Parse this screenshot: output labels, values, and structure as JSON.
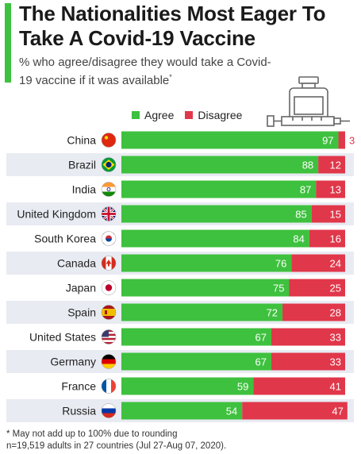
{
  "header": {
    "title": "The Nationalities Most Eager To Take A Covid-19 Vaccine",
    "subtitle": "% who agree/disagree they would take a Covid-19 vaccine if it was available",
    "subtitle_marker": "*"
  },
  "legend": {
    "agree_label": "Agree",
    "disagree_label": "Disagree"
  },
  "footnote": {
    "line1": "* May not add up to 100% due to rounding",
    "line2": "n=19,519 adults in 27 countries (Jul 27-Aug 07, 2020)."
  },
  "colors": {
    "agree": "#3ec13e",
    "disagree": "#e0374a",
    "stripe": "#e8ebf2",
    "accent": "#3ec13e"
  },
  "chart_data": {
    "type": "bar",
    "orientation": "horizontal",
    "stacked": true,
    "categories": [
      "China",
      "Brazil",
      "India",
      "United Kingdom",
      "South Korea",
      "Canada",
      "Japan",
      "Spain",
      "United States",
      "Germany",
      "France",
      "Russia"
    ],
    "flags": [
      "china-flag-icon",
      "brazil-flag-icon",
      "india-flag-icon",
      "united-kingdom-flag-icon",
      "south-korea-flag-icon",
      "canada-flag-icon",
      "japan-flag-icon",
      "spain-flag-icon",
      "united-states-flag-icon",
      "germany-flag-icon",
      "france-flag-icon",
      "russia-flag-icon"
    ],
    "series": [
      {
        "name": "Agree",
        "values": [
          97,
          88,
          87,
          85,
          84,
          76,
          75,
          72,
          67,
          67,
          59,
          54
        ]
      },
      {
        "name": "Disagree",
        "values": [
          3,
          12,
          13,
          15,
          16,
          24,
          25,
          28,
          33,
          33,
          41,
          47
        ]
      }
    ],
    "xlim": [
      0,
      100
    ],
    "legend_position": "top-center",
    "grid": false
  }
}
